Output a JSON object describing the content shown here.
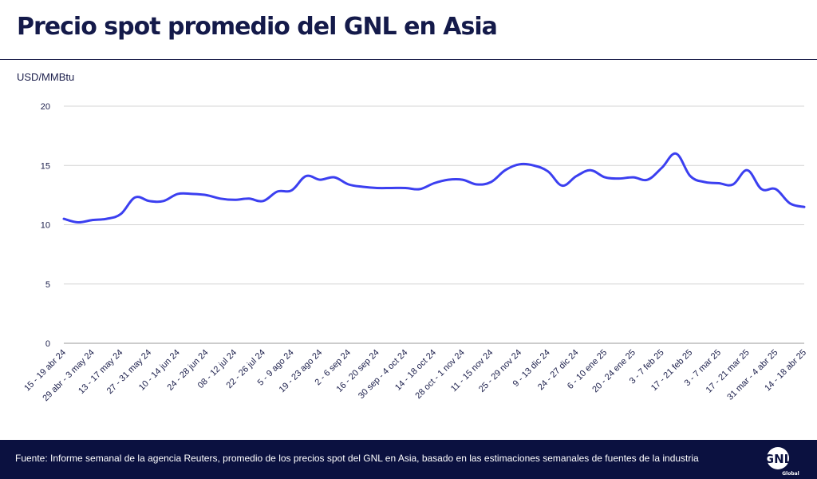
{
  "header": {
    "title": "Precio spot promedio del GNL en Asia"
  },
  "footer": {
    "source": "Fuente: Informe semanal de la agencia Reuters, promedio de los precios spot del GNL en Asia, basado en las estimaciones semanales de fuentes de la industria",
    "logo_text": "GNL",
    "logo_subtext": "Global"
  },
  "colors": {
    "line": "#3b3ff0",
    "footer_bg": "#0b1140",
    "grid": "#d4d4d4"
  },
  "chart_data": {
    "type": "line",
    "title": "Precio spot promedio del GNL en Asia",
    "ylabel": "USD/MMBtu",
    "xlabel": "",
    "ylim": [
      0,
      20
    ],
    "yticks": [
      0,
      5,
      10,
      15,
      20
    ],
    "grid": true,
    "x_tick_labels": [
      "15 - 19 abr 24",
      "29 abr - 3 may 24",
      "13 - 17 may 24",
      "27 - 31 may 24",
      "10 - 14 jun 24",
      "24 - 28 jun 24",
      "08 - 12 jul 24",
      "22 - 26 jul 24",
      "5 - 9 ago 24",
      "19 - 23 ago 24",
      "2 - 6 sep 24",
      "16 - 20 sep 24",
      "30 sep - 4 oct 24",
      "14 - 18 oct 24",
      "28 oct - 1 nov 24",
      "11 - 15 nov 24",
      "25 - 29 nov 24",
      "9 - 13 dic 24",
      "24 - 27 dic 24",
      "6 - 10 ene 25",
      "20 - 24 ene 25",
      "3 - 7 feb 25",
      "17 - 21 feb 25",
      "3 - 7 mar 25",
      "17 - 21 mar 25",
      "31 mar - 4 abr 25",
      "14 - 18 abr 25"
    ],
    "series": [
      {
        "values": [
          10.5,
          10.2,
          10.4,
          10.5,
          10.9,
          12.3,
          12.0,
          12.0,
          12.6,
          12.6,
          12.5,
          12.2,
          12.1,
          12.2,
          12.0,
          12.8,
          12.9,
          14.1,
          13.8,
          14.0,
          13.4,
          13.2,
          13.1,
          13.1,
          13.1,
          13.0,
          13.5,
          13.8,
          13.8,
          13.4,
          13.6,
          14.6,
          15.1,
          15.0,
          14.5,
          13.3,
          14.1,
          14.6,
          14.0,
          13.9,
          14.0,
          13.8,
          14.8,
          16.0,
          14.1,
          13.6,
          13.5,
          13.4,
          14.6,
          13.0,
          13.0,
          11.8,
          11.5
        ]
      }
    ]
  }
}
